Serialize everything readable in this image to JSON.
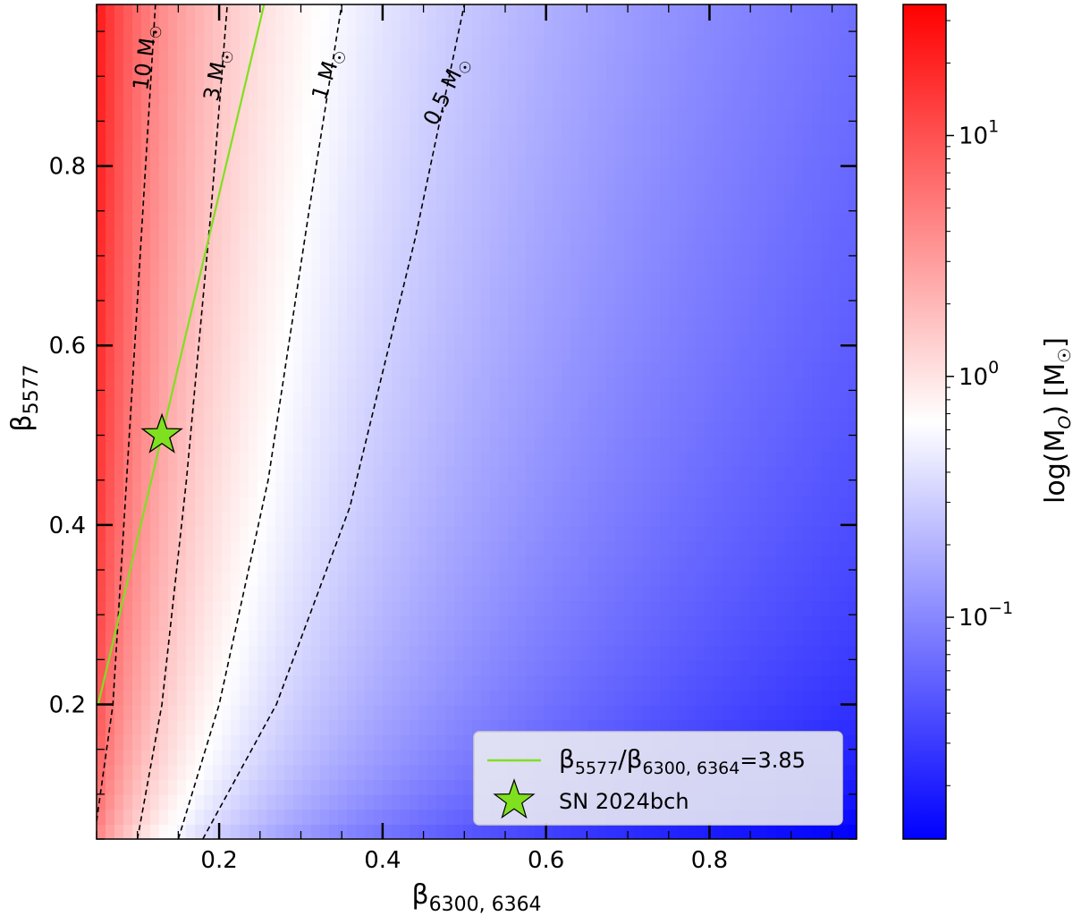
{
  "chart_data": {
    "type": "heatmap",
    "title": "",
    "xlabel": "β",
    "xlabel_sub": "6300, 6364",
    "ylabel": "β",
    "ylabel_sub": "5577",
    "xlim": [
      0.05,
      0.98
    ],
    "ylim": [
      0.05,
      0.98
    ],
    "x_ticks": [
      0.2,
      0.4,
      0.6,
      0.8
    ],
    "y_ticks": [
      0.2,
      0.4,
      0.6,
      0.8
    ],
    "x_tick_labels": [
      "0.2",
      "0.4",
      "0.6",
      "0.8"
    ],
    "y_tick_labels": [
      "0.2",
      "0.4",
      "0.6",
      "0.8"
    ],
    "colorscale": {
      "name": "bwr",
      "scale": "log",
      "min_value": 0.012,
      "max_value": 35,
      "center_value": 0.6,
      "low_color": "#0000ff",
      "mid_color": "#ffffff",
      "high_color": "#ff0000"
    },
    "colorbar": {
      "label_main": "log(M",
      "label_sub": "O",
      "label_end": ") [M",
      "label_sun": "☉",
      "label_close": "]",
      "ticks": [
        {
          "value": 10,
          "base": "10",
          "exp": "1"
        },
        {
          "value": 1,
          "base": "10",
          "exp": "0"
        },
        {
          "value": 0.1,
          "base": "10",
          "exp": "−1"
        }
      ]
    },
    "contours": [
      {
        "label": "10 M",
        "label_sun": "☉",
        "mass": 10,
        "points": [
          [
            0.05,
            0.07
          ],
          [
            0.07,
            0.2
          ],
          [
            0.09,
            0.5
          ],
          [
            0.11,
            0.8
          ],
          [
            0.122,
            0.98
          ]
        ]
      },
      {
        "label": "3 M",
        "label_sun": "☉",
        "mass": 3,
        "points": [
          [
            0.1,
            0.05
          ],
          [
            0.13,
            0.2
          ],
          [
            0.16,
            0.45
          ],
          [
            0.19,
            0.75
          ],
          [
            0.21,
            0.98
          ]
        ]
      },
      {
        "label": "1 M",
        "label_sun": "☉",
        "mass": 1,
        "points": [
          [
            0.15,
            0.05
          ],
          [
            0.2,
            0.2
          ],
          [
            0.26,
            0.45
          ],
          [
            0.31,
            0.75
          ],
          [
            0.35,
            0.98
          ]
        ]
      },
      {
        "label": "0.5 M",
        "label_sun": "☉",
        "mass": 0.5,
        "points": [
          [
            0.18,
            0.05
          ],
          [
            0.27,
            0.2
          ],
          [
            0.36,
            0.42
          ],
          [
            0.44,
            0.72
          ],
          [
            0.5,
            0.98
          ]
        ]
      }
    ],
    "ratio_line": {
      "color": "#7fe01f",
      "ratio": 3.85,
      "points": [
        [
          0.052,
          0.2
        ],
        [
          0.255,
          0.98
        ]
      ],
      "legend_label": "β",
      "legend_sub1": "5577",
      "legend_slash": "/β",
      "legend_sub2": "6300, 6364",
      "legend_end": "=3.85"
    },
    "marker": {
      "name": "SN 2024bch",
      "x": 0.13,
      "y": 0.5,
      "color": "#7fe01f"
    }
  }
}
